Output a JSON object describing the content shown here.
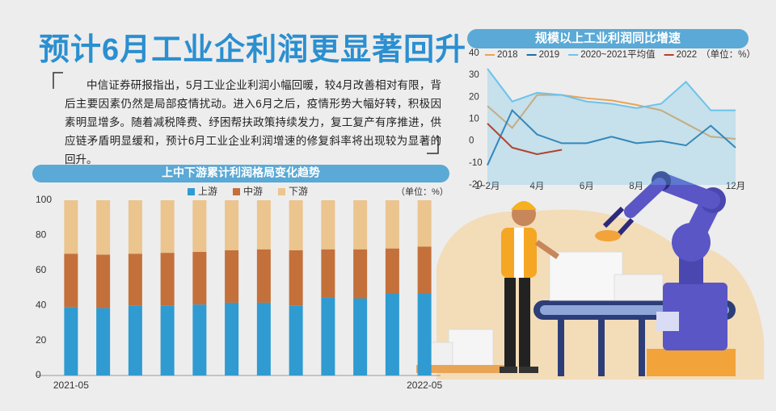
{
  "header": {
    "title": "预计6月工业企利润更显著回升",
    "text": "中信证券研报指出，5月工业企业利润小幅回暖，较4月改善相对有限，背后主要因素仍然是局部疫情扰动。进入6月之后，疫情形势大幅好转，积极因素明显增多。随着减税降费、纾困帮扶政策持续发力，复工复产有序推进，供应链矛盾明显缓和，预计6月工业企业利润增速的修复斜率将出现较为显著的回升。"
  },
  "chart_data": [
    {
      "type": "bar",
      "stacked": true,
      "title": "上中下游累计利润格局变化趋势",
      "unit": "（单位：%）",
      "categories": [
        "2021-05",
        null,
        null,
        null,
        null,
        null,
        null,
        null,
        null,
        null,
        null,
        "2022-05"
      ],
      "series": [
        {
          "name": "上游",
          "color": "#2f9bd1",
          "values": [
            39,
            38.5,
            40,
            40,
            40.5,
            41.5,
            41.5,
            40,
            44.5,
            44,
            47,
            47
          ]
        },
        {
          "name": "中游",
          "color": "#c4703a",
          "values": [
            30.5,
            30.5,
            29.5,
            30,
            30,
            30,
            30.5,
            31.5,
            27.5,
            28,
            25.5,
            26.5
          ]
        },
        {
          "name": "下游",
          "color": "#ebc48e",
          "values": [
            30.5,
            31,
            30.5,
            30,
            29.5,
            28.5,
            28,
            28.5,
            28,
            28,
            27.5,
            26.5
          ]
        }
      ],
      "ylim": [
        0,
        100
      ],
      "yticks": [
        0,
        20,
        40,
        60,
        80,
        100
      ],
      "grid": false
    },
    {
      "type": "line",
      "title": "规模以上工业利润同比增速",
      "unit": "（单位：%）",
      "categories": [
        "1~2月",
        null,
        "4月",
        null,
        "6月",
        null,
        "8月",
        null,
        null,
        null,
        "12月"
      ],
      "series": [
        {
          "name": "2018",
          "color": "#e9a455",
          "values": [
            16,
            6,
            21,
            21,
            19.5,
            18.5,
            16.5,
            14,
            8,
            2,
            1
          ]
        },
        {
          "name": "2019",
          "color": "#1b6fa3",
          "values": [
            -11,
            14,
            3,
            -1,
            -1,
            2,
            -1,
            0,
            -2,
            7,
            -3
          ]
        },
        {
          "name": "2020~2021平均值",
          "color": "#6cc3ea",
          "area": true,
          "values": [
            33,
            18,
            22,
            21,
            18,
            17,
            15,
            17,
            27,
            14,
            14
          ]
        },
        {
          "name": "2022",
          "color": "#b2432b",
          "values": [
            8,
            -3,
            -6,
            -4,
            null,
            null,
            null,
            null,
            null,
            null,
            null
          ]
        }
      ],
      "ylim": [
        -20,
        40
      ],
      "yticks": [
        -20,
        -10,
        0,
        10,
        20,
        30,
        40
      ],
      "grid": false
    }
  ]
}
